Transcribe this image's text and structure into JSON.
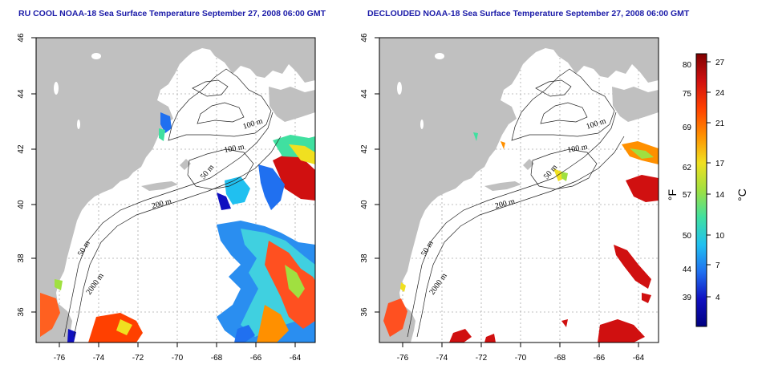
{
  "panels": [
    {
      "id": "left",
      "title": "RU COOL NOAA-18 Sea Surface Temperature September 27, 2008 06:00 GMT"
    },
    {
      "id": "right",
      "title": "DECLOUDED NOAA-18 Sea Surface Temperature September 27, 2008 06:00 GMT"
    }
  ],
  "axes": {
    "x_ticks": [
      "-76",
      "-74",
      "-72",
      "-70",
      "-68",
      "-66",
      "-64"
    ],
    "y_ticks": [
      "36",
      "38",
      "40",
      "42",
      "44",
      "46"
    ]
  },
  "contour_labels": {
    "left": [
      "100 m",
      "100 m",
      "50 m",
      "200 m",
      "50 m",
      "2000 m"
    ],
    "right": [
      "100 m",
      "100 m",
      "50 m",
      "200 m",
      "50 m",
      "2000 m"
    ]
  },
  "colorbar": {
    "fahrenheit_ticks": [
      "80",
      "75",
      "69",
      "62",
      "57",
      "50",
      "44",
      "39"
    ],
    "celsius_ticks": [
      "27",
      "24",
      "21",
      "17",
      "14",
      "10",
      "7",
      "4"
    ],
    "fahrenheit_unit": "°F",
    "celsius_unit": "°C"
  },
  "colors": {
    "land": "#c0c0c0",
    "water": "#ffffff",
    "title": "#1a1aa8",
    "colormap": [
      "#800000",
      "#d01010",
      "#ff4000",
      "#ff9000",
      "#f0e020",
      "#a0e040",
      "#40e0a0",
      "#20c0f0",
      "#2070f0",
      "#1010c0",
      "#000080"
    ]
  }
}
